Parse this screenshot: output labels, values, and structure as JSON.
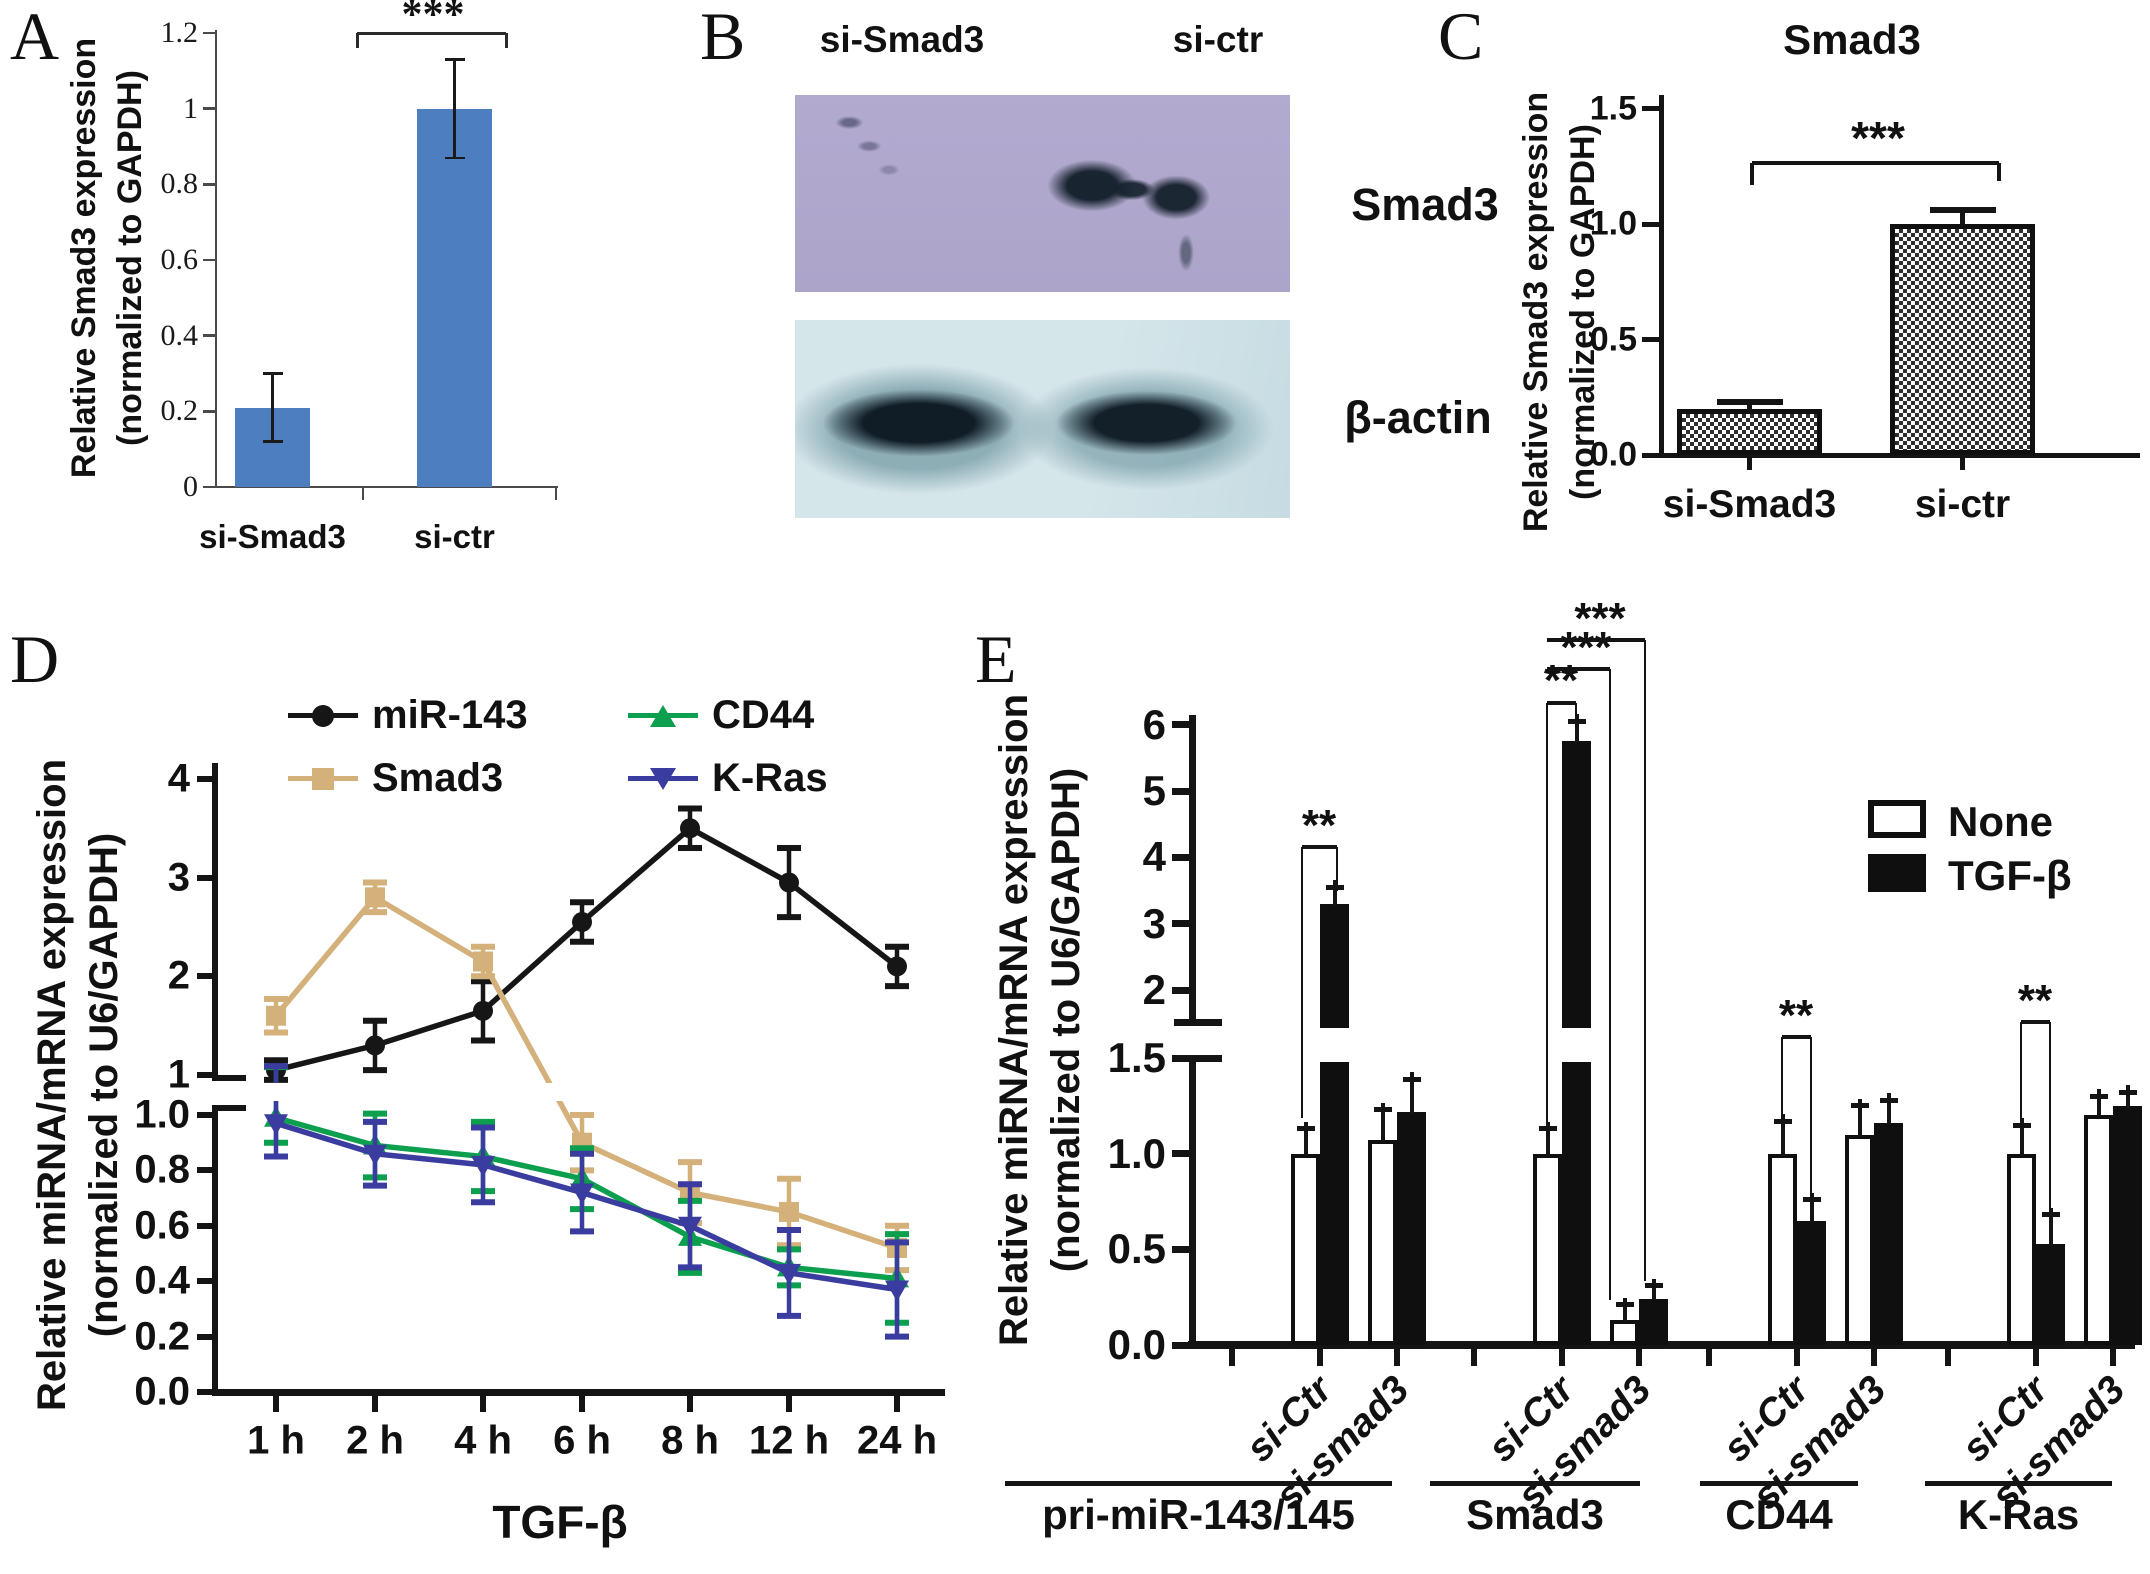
{
  "colors": {
    "panel_a_bar": "#4d7ebf",
    "axis_gray": "#4a4a4a",
    "ink": "#141414",
    "mir143": "#161616",
    "smad3_line": "#d4b17b",
    "cd44": "#0b9f4e",
    "kras": "#3a3c9f",
    "none_fill": "#ffffff",
    "tgfb_fill": "#0f0f0f",
    "blot_smad3_bg": "#b2aacf",
    "blot_actin_bg": "#cde0e6"
  },
  "panel_a": {
    "letter": "A",
    "ylabel": [
      "Relative Smad3 expression",
      "(normalized to GAPDH)"
    ],
    "significance": "***",
    "chart_data": {
      "type": "bar",
      "categories": [
        "si-Smad3",
        "si-ctr"
      ],
      "values": [
        0.21,
        1.0
      ],
      "errors": [
        0.09,
        0.13
      ],
      "ylim": [
        0,
        1.2
      ],
      "yticks": [
        0,
        0.2,
        0.4,
        0.6,
        0.8,
        1,
        1.2
      ],
      "ytick_labels": [
        "0",
        "0.2",
        "0.4",
        "0.6",
        "0.8",
        "1",
        "1.2"
      ]
    }
  },
  "panel_b": {
    "letter": "B",
    "lane_labels": [
      "si-Smad3",
      "si-ctr"
    ],
    "band_labels": [
      "Smad3",
      "β-actin"
    ]
  },
  "panel_c": {
    "letter": "C",
    "title": "Smad3",
    "ylabel": [
      "Relative Smad3 expression",
      "(normalized to GAPDH)"
    ],
    "significance": "***",
    "chart_data": {
      "type": "bar",
      "categories": [
        "si-Smad3",
        "si-ctr"
      ],
      "values": [
        0.2,
        1.0
      ],
      "errors": [
        0.03,
        0.06
      ],
      "ylim": [
        0,
        1.5
      ],
      "yticks": [
        0,
        0.5,
        1.0,
        1.5
      ],
      "ytick_labels": [
        "0.0",
        "0.5",
        "1.0",
        "1.5"
      ]
    }
  },
  "panel_d": {
    "letter": "D",
    "ylabel": [
      "Relative miRNA/mRNA expression",
      "(normalized to U6/GAPDH)"
    ],
    "xlabel": "TGF-β",
    "chart_data": {
      "type": "line",
      "x_tick_labels": [
        "1 h",
        "2 h",
        "4 h",
        "6 h",
        "8 h",
        "12 h",
        "24 h"
      ],
      "axis_break": {
        "upper_range": [
          1,
          4
        ],
        "lower_range": [
          0,
          1
        ],
        "upper_ticks": [
          1,
          2,
          3,
          4
        ],
        "upper_tick_labels": [
          "1",
          "2",
          "3",
          "4"
        ],
        "lower_ticks": [
          0,
          0.2,
          0.4,
          0.6,
          0.8,
          1.0
        ],
        "lower_tick_labels": [
          "0.0",
          "0.2",
          "0.4",
          "0.6",
          "0.8",
          "1.0"
        ]
      },
      "series": [
        {
          "name": "miR-143",
          "marker": "circle",
          "color_key": "mir143",
          "values": [
            1.05,
            1.3,
            1.65,
            2.55,
            3.5,
            2.95,
            2.1
          ],
          "errors": [
            0.1,
            0.25,
            0.3,
            0.2,
            0.2,
            0.35,
            0.2
          ]
        },
        {
          "name": "Smad3",
          "marker": "square",
          "color_key": "smad3_line",
          "values": [
            1.6,
            2.8,
            2.15,
            0.9,
            0.72,
            0.65,
            0.52
          ],
          "errors": [
            0.17,
            0.15,
            0.15,
            0.1,
            0.11,
            0.12,
            0.08
          ]
        },
        {
          "name": "CD44",
          "marker": "triangle-up",
          "color_key": "cd44",
          "values": [
            0.99,
            0.89,
            0.85,
            0.77,
            0.56,
            0.45,
            0.41
          ],
          "errors": [
            0.09,
            0.115,
            0.125,
            0.11,
            0.13,
            0.065,
            0.16
          ]
        },
        {
          "name": "K-Ras",
          "marker": "triangle-down",
          "color_key": "kras",
          "values": [
            0.97,
            0.86,
            0.82,
            0.72,
            0.6,
            0.43,
            0.37
          ],
          "errors": [
            0.12,
            0.115,
            0.135,
            0.14,
            0.15,
            0.155,
            0.17
          ]
        }
      ]
    }
  },
  "panel_e": {
    "letter": "E",
    "ylabel": [
      "Relative miRNA/mRNA expression",
      "(normalized to U6/GAPDH)"
    ],
    "legend": [
      {
        "label": "None",
        "fill_key": "none_fill"
      },
      {
        "label": "TGF-β",
        "fill_key": "tgfb_fill"
      }
    ],
    "chart_data": {
      "type": "bar-grouped",
      "conditions": [
        "si-Ctr",
        "si-smad3"
      ],
      "bar_order": [
        "si-Ctr None",
        "si-Ctr TGF-β",
        "si-smad3 None",
        "si-smad3 TGF-β"
      ],
      "upper_ticks": [
        2,
        3,
        4,
        5,
        6
      ],
      "upper_tick_labels": [
        "2",
        "3",
        "4",
        "5",
        "6"
      ],
      "lower_ticks": [
        0,
        0.5,
        1.0,
        1.5
      ],
      "lower_tick_labels": [
        "0.0",
        "0.5",
        "1.0",
        "1.5"
      ],
      "groups": [
        {
          "name": "pri-miR-143/145",
          "values": [
            1.0,
            3.3,
            1.07,
            1.22
          ],
          "errors": [
            0.13,
            0.25,
            0.16,
            0.17
          ]
        },
        {
          "name": "Smad3",
          "values": [
            1.0,
            5.75,
            0.13,
            0.24
          ],
          "errors": [
            0.13,
            0.3,
            0.08,
            0.07
          ]
        },
        {
          "name": "CD44",
          "values": [
            1.0,
            0.65,
            1.1,
            1.16
          ],
          "errors": [
            0.17,
            0.11,
            0.15,
            0.12
          ]
        },
        {
          "name": "K-Ras",
          "values": [
            1.0,
            0.53,
            1.2,
            1.25
          ],
          "errors": [
            0.15,
            0.15,
            0.1,
            0.07
          ]
        }
      ],
      "sig": [
        {
          "label": "**"
        },
        {
          "label": "**"
        },
        {
          "label": "***"
        },
        {
          "label": "***"
        },
        {
          "label": "**"
        },
        {
          "label": "**"
        }
      ]
    }
  }
}
